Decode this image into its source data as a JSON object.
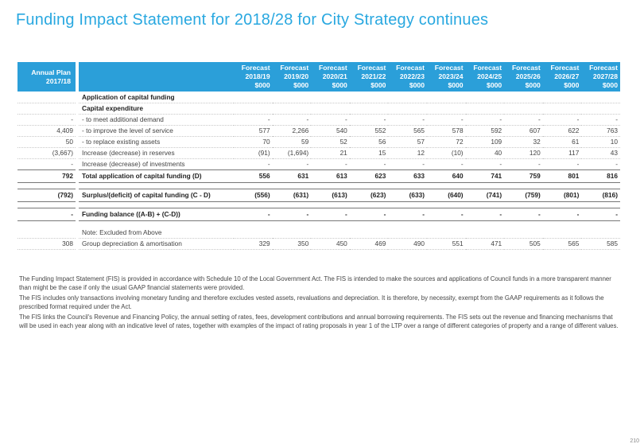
{
  "title": "Funding Impact Statement for 2018/28 for City Strategy continues",
  "header": {
    "plan_l1": "Annual Plan",
    "plan_l2": "2017/18",
    "forecasts": [
      {
        "l1": "Forecast",
        "l2": "2018/19",
        "l3": "$000"
      },
      {
        "l1": "Forecast",
        "l2": "2019/20",
        "l3": "$000"
      },
      {
        "l1": "Forecast",
        "l2": "2020/21",
        "l3": "$000"
      },
      {
        "l1": "Forecast",
        "l2": "2021/22",
        "l3": "$000"
      },
      {
        "l1": "Forecast",
        "l2": "2022/23",
        "l3": "$000"
      },
      {
        "l1": "Forecast",
        "l2": "2023/24",
        "l3": "$000"
      },
      {
        "l1": "Forecast",
        "l2": "2024/25",
        "l3": "$000"
      },
      {
        "l1": "Forecast",
        "l2": "2025/26",
        "l3": "$000"
      },
      {
        "l1": "Forecast",
        "l2": "2026/27",
        "l3": "$000"
      },
      {
        "l1": "Forecast",
        "l2": "2027/28",
        "l3": "$000"
      }
    ]
  },
  "rows": [
    {
      "plan": "",
      "label": "Application of capital funding",
      "values": [
        "",
        "",
        "",
        "",
        "",
        "",
        "",
        "",
        "",
        ""
      ]
    },
    {
      "plan": "",
      "label": "Capital expenditure",
      "values": [
        "",
        "",
        "",
        "",
        "",
        "",
        "",
        "",
        "",
        ""
      ]
    },
    {
      "plan": "-",
      "label": "- to meet additional demand",
      "values": [
        "-",
        "-",
        "-",
        "-",
        "-",
        "-",
        "-",
        "-",
        "-",
        "-"
      ]
    },
    {
      "plan": "4,409",
      "label": "- to improve the level of service",
      "values": [
        "577",
        "2,266",
        "540",
        "552",
        "565",
        "578",
        "592",
        "607",
        "622",
        "763"
      ]
    },
    {
      "plan": "50",
      "label": "- to replace existing assets",
      "values": [
        "70",
        "59",
        "52",
        "56",
        "57",
        "72",
        "109",
        "32",
        "61",
        "10"
      ]
    },
    {
      "plan": "(3,667)",
      "label": "Increase (decrease) in reserves",
      "values": [
        "(91)",
        "(1,694)",
        "21",
        "15",
        "12",
        "(10)",
        "40",
        "120",
        "117",
        "43"
      ]
    },
    {
      "plan": "-",
      "label": "Increase (decrease) of investments",
      "values": [
        "-",
        "-",
        "-",
        "-",
        "-",
        "-",
        "-",
        "-",
        "-",
        "-"
      ]
    },
    {
      "plan": "792",
      "label": "Total application of capital funding (D)",
      "values": [
        "556",
        "631",
        "613",
        "623",
        "633",
        "640",
        "741",
        "759",
        "801",
        "816"
      ]
    },
    {
      "plan": "(792)",
      "label": "Surplus/(deficit) of capital funding (C - D)",
      "values": [
        "(556)",
        "(631)",
        "(613)",
        "(623)",
        "(633)",
        "(640)",
        "(741)",
        "(759)",
        "(801)",
        "(816)"
      ]
    },
    {
      "plan": "-",
      "label": "Funding balance ((A-B) + (C-D))",
      "values": [
        "-",
        "-",
        "-",
        "-",
        "-",
        "-",
        "-",
        "-",
        "-",
        "-"
      ]
    },
    {
      "plan": "",
      "label": "Note: Excluded from Above",
      "values": [
        "",
        "",
        "",
        "",
        "",
        "",
        "",
        "",
        "",
        ""
      ]
    },
    {
      "plan": "308",
      "label": "Group depreciation & amortisation",
      "values": [
        "329",
        "350",
        "450",
        "469",
        "490",
        "551",
        "471",
        "505",
        "565",
        "585"
      ]
    }
  ],
  "notes": [
    "The Funding Impact Statement (FIS) is provided in accordance with Schedule 10 of the Local Government Act. The FIS is intended to make the sources and applications of Council funds in a more transparent manner than might be the case if only the usual GAAP financial statements were provided.",
    "The FIS includes only transactions involving monetary funding and therefore excludes vested assets, revaluations and depreciation.  It is therefore, by necessity, exempt from the GAAP requirements as it follows the prescribed format required under the Act.",
    "The FIS links the Council's Revenue and Financing Policy, the annual setting of rates, fees, development contributions and annual borrowing requirements.  The FIS sets out the revenue and financing mechanisms that will be used in each year along with an indicative level of rates, together with examples of the impact of rating proposals in year 1 of the LTP over a range of different categories of property and a range of different values."
  ],
  "page_number": "210"
}
